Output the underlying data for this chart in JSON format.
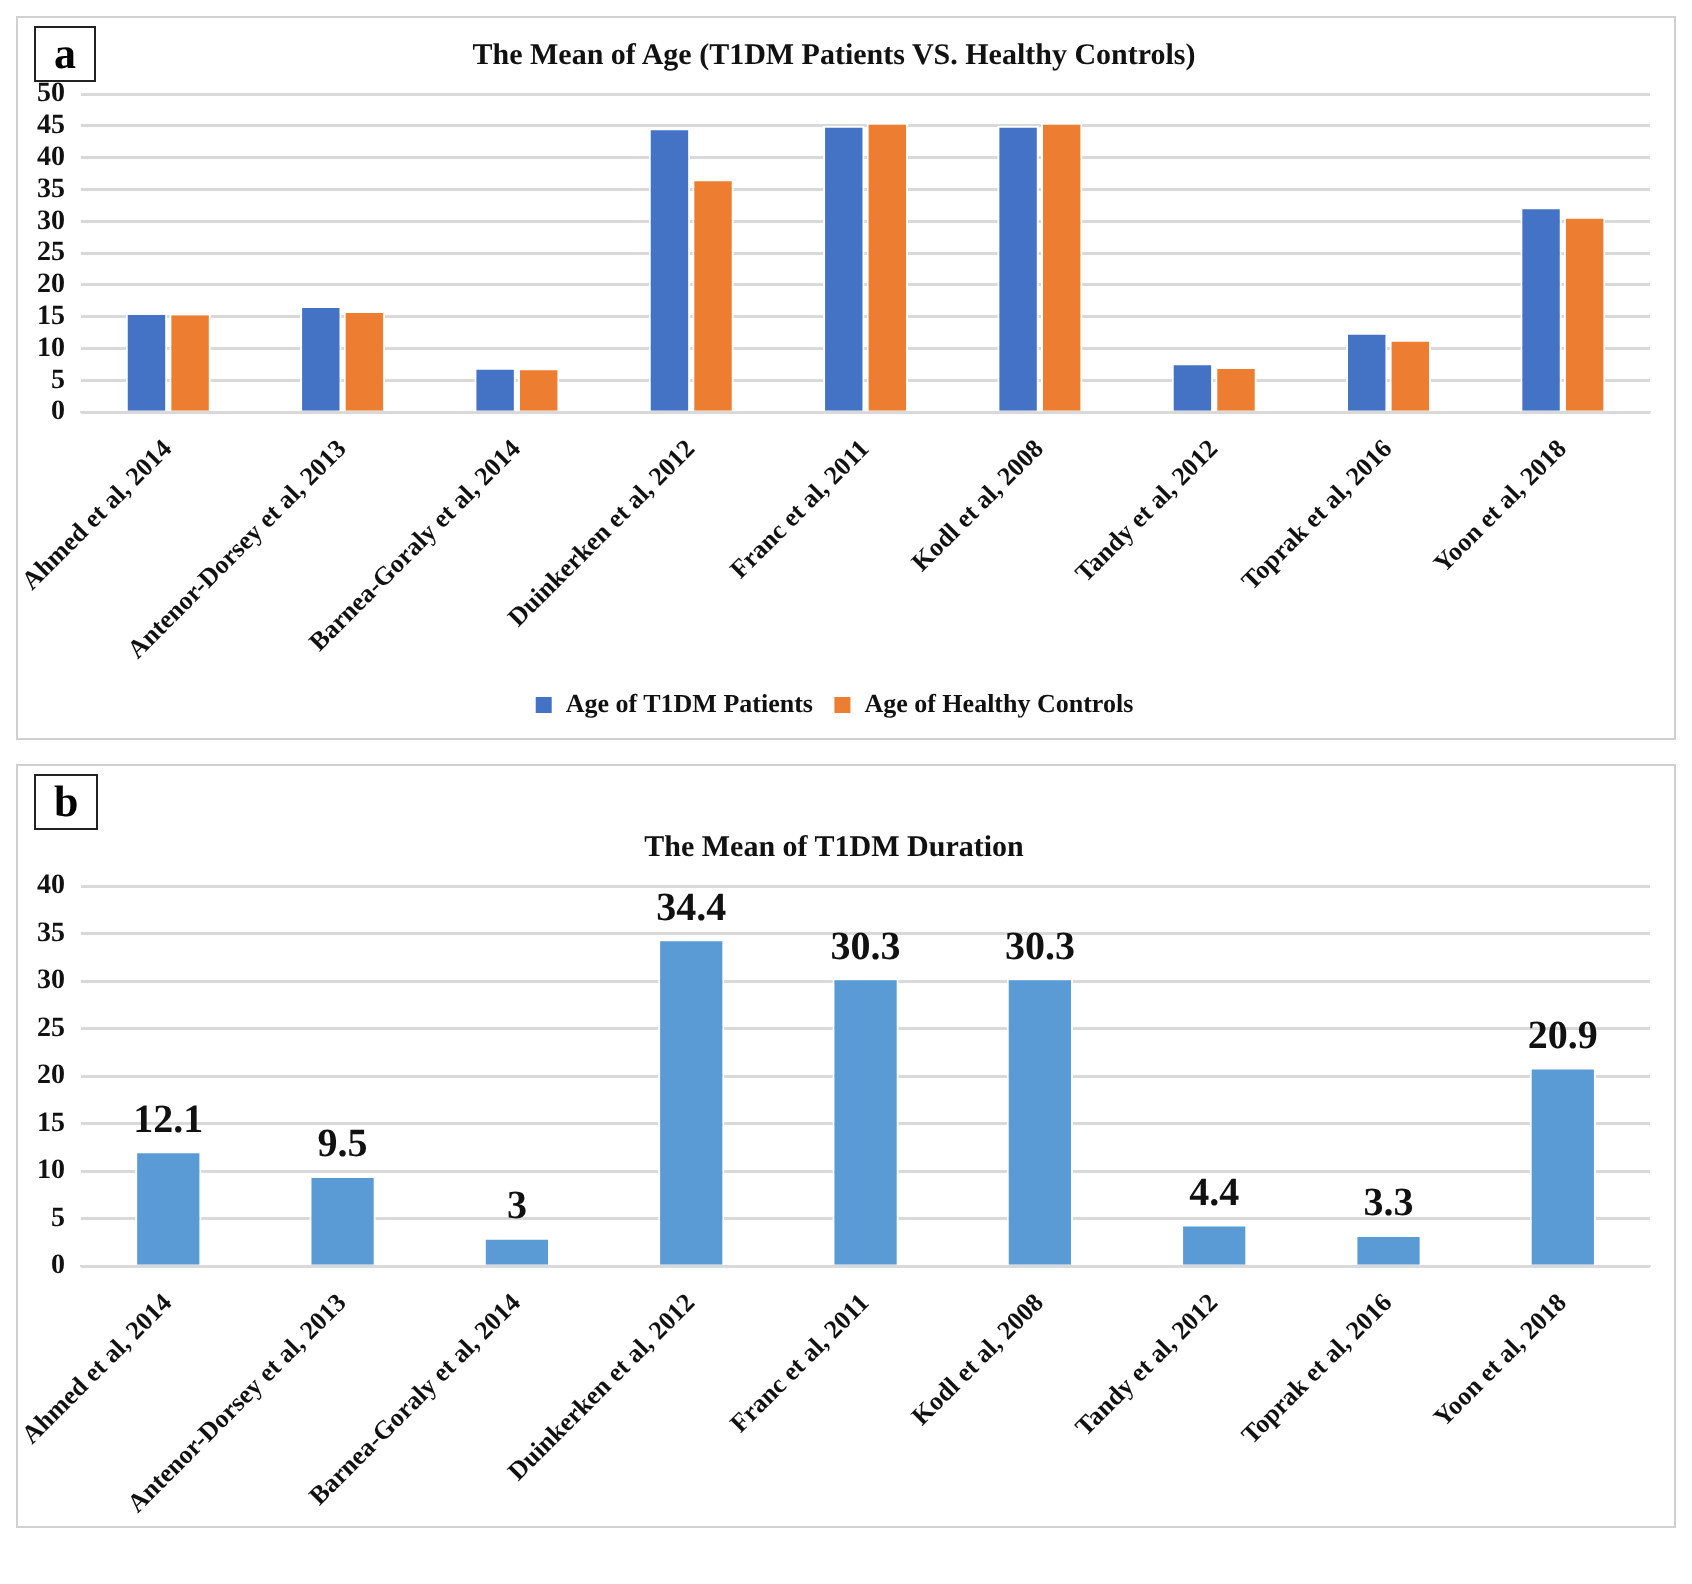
{
  "chart_data": [
    {
      "type": "bar",
      "title": "The Mean of Age (T1DM Patients VS. Healthy Controls)",
      "annotations": [
        "a"
      ],
      "categories": [
        "Ahmed et al, 2014",
        "Antenor-Dorsey et al, 2013",
        "Barnea-Goraly et al, 2014",
        "Duinkerken et al, 2012",
        "Franc et al, 2011",
        "Kodl et al, 2008",
        "Tandy et al, 2012",
        "Toprak et al, 2016",
        "Yoon et al, 2018"
      ],
      "series": [
        {
          "name": "Age of T1DM Patients",
          "color": "#4472c4",
          "values": [
            15.6,
            16.7,
            7.0,
            44.6,
            45.0,
            45.0,
            7.7,
            12.5,
            32.2
          ]
        },
        {
          "name": "Age of Healthy Controls",
          "color": "#ed7d31",
          "values": [
            15.5,
            15.9,
            6.9,
            36.6,
            45.5,
            45.5,
            7.1,
            11.4,
            30.7
          ]
        }
      ],
      "ylim": [
        0,
        50
      ],
      "yticks": [
        0,
        5,
        10,
        15,
        20,
        25,
        30,
        35,
        40,
        45,
        50
      ],
      "grid": "y",
      "legend": "bottom"
    },
    {
      "type": "bar",
      "title": "The Mean of T1DM Duration",
      "annotations": [
        "b"
      ],
      "categories": [
        "Ahmed et al, 2014",
        "Antenor-Dorsey et al, 2013",
        "Barnea-Goraly et al, 2014",
        "Duinkerken et al, 2012",
        "Franc et al, 2011",
        "Kodl et al, 2008",
        "Tandy et al, 2012",
        "Toprak et al, 2016",
        "Yoon et al, 2018"
      ],
      "series": [
        {
          "color": "#5b9bd5",
          "values": [
            12.1,
            9.5,
            3,
            34.4,
            30.3,
            30.3,
            4.4,
            3.3,
            20.9
          ]
        }
      ],
      "ylim": [
        0,
        40
      ],
      "yticks": [
        0,
        5,
        10,
        15,
        20,
        25,
        30,
        35,
        40
      ],
      "grid": "y",
      "data_labels": true
    }
  ]
}
